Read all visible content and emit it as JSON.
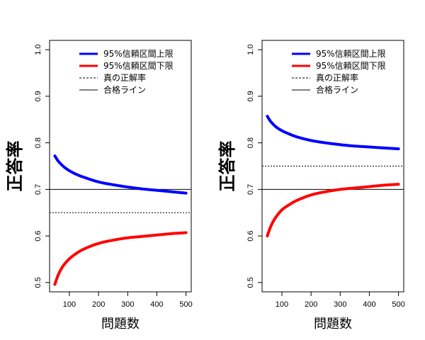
{
  "chart_data": [
    {
      "type": "line",
      "panel": "left",
      "xlabel": "問題数",
      "ylabel": "正答率",
      "xlim": [
        50,
        500
      ],
      "ylim": [
        0.5,
        1.0
      ],
      "x_ticks": [
        100,
        200,
        300,
        400,
        500
      ],
      "x_tick_labels": [
        "100",
        "200",
        "300",
        "400",
        "500"
      ],
      "y_ticks": [
        0.5,
        0.6,
        0.7,
        0.8,
        0.9,
        1.0
      ],
      "y_tick_labels": [
        "0.5",
        "0.6",
        "0.7",
        "0.8",
        "0.9",
        "1.0"
      ],
      "true_rate": 0.65,
      "pass_line": 0.7,
      "series": [
        {
          "name": "95%信頼区間上限",
          "color": "#0000ff",
          "x": [
            50,
            60,
            70,
            80,
            100,
            125,
            150,
            200,
            250,
            300,
            350,
            400,
            450,
            500
          ],
          "values": [
            0.772,
            0.762,
            0.755,
            0.749,
            0.74,
            0.732,
            0.726,
            0.716,
            0.71,
            0.705,
            0.701,
            0.698,
            0.695,
            0.692
          ]
        },
        {
          "name": "95%信頼区間下限",
          "color": "#ff0000",
          "x": [
            50,
            60,
            70,
            80,
            100,
            125,
            150,
            200,
            250,
            300,
            350,
            400,
            450,
            500
          ],
          "values": [
            0.496,
            0.514,
            0.527,
            0.537,
            0.551,
            0.563,
            0.572,
            0.584,
            0.591,
            0.596,
            0.599,
            0.602,
            0.605,
            0.607
          ]
        }
      ]
    },
    {
      "type": "line",
      "panel": "right",
      "xlabel": "問題数",
      "ylabel": "正答率",
      "xlim": [
        50,
        500
      ],
      "ylim": [
        0.5,
        1.0
      ],
      "x_ticks": [
        100,
        200,
        300,
        400,
        500
      ],
      "x_tick_labels": [
        "100",
        "200",
        "300",
        "400",
        "500"
      ],
      "y_ticks": [
        0.5,
        0.6,
        0.7,
        0.8,
        0.9,
        1.0
      ],
      "y_tick_labels": [
        "0.5",
        "0.6",
        "0.7",
        "0.8",
        "0.9",
        "1.0"
      ],
      "true_rate": 0.75,
      "pass_line": 0.7,
      "series": [
        {
          "name": "95%信頼区間上限",
          "color": "#0000ff",
          "x": [
            50,
            60,
            70,
            80,
            100,
            125,
            150,
            200,
            250,
            300,
            350,
            400,
            450,
            500
          ],
          "values": [
            0.857,
            0.847,
            0.84,
            0.834,
            0.826,
            0.819,
            0.813,
            0.805,
            0.8,
            0.796,
            0.793,
            0.791,
            0.789,
            0.787
          ]
        },
        {
          "name": "95%信頼区間下限",
          "color": "#ff0000",
          "x": [
            50,
            60,
            70,
            80,
            100,
            125,
            150,
            200,
            250,
            300,
            350,
            400,
            450,
            500
          ],
          "values": [
            0.6,
            0.618,
            0.631,
            0.641,
            0.656,
            0.667,
            0.676,
            0.688,
            0.695,
            0.7,
            0.703,
            0.706,
            0.709,
            0.711
          ]
        }
      ]
    }
  ],
  "legend": {
    "placement": "top-right",
    "items": [
      {
        "label": "95%信頼区間上限",
        "color": "#0000ff",
        "style": "thick-solid"
      },
      {
        "label": "95%信頼区間下限",
        "color": "#ff0000",
        "style": "thick-solid"
      },
      {
        "label": "真の正解率",
        "color": "#000000",
        "style": "dashed"
      },
      {
        "label": "合格ライン",
        "color": "#000000",
        "style": "solid"
      }
    ]
  }
}
